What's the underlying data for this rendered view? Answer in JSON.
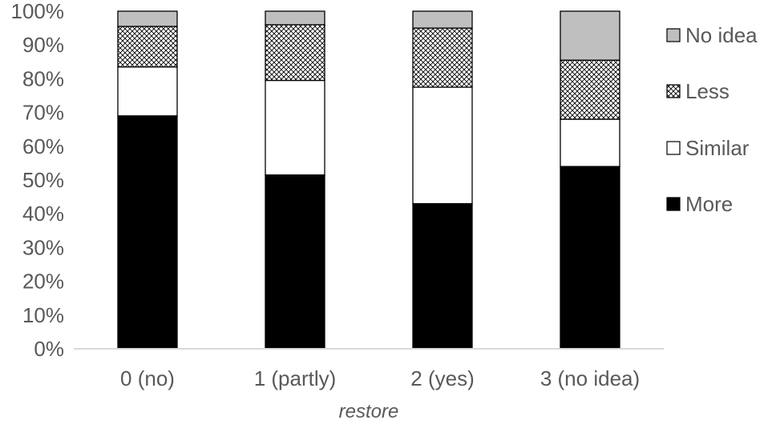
{
  "chart_data": {
    "type": "bar",
    "stacked": true,
    "stack_normalized": true,
    "categories": [
      "0 (no)",
      "1 (partly)",
      "2 (yes)",
      "3 (no idea)"
    ],
    "series": [
      {
        "name": "More",
        "values": [
          69,
          51.5,
          43,
          54
        ],
        "fill": "black"
      },
      {
        "name": "Similar",
        "values": [
          14.5,
          28,
          34.5,
          14
        ],
        "fill": "white"
      },
      {
        "name": "Less",
        "values": [
          12,
          16.5,
          17.5,
          17.5
        ],
        "fill": "crosshatch"
      },
      {
        "name": "No idea",
        "values": [
          4.5,
          4,
          5,
          14.5
        ],
        "fill": "gray"
      }
    ],
    "xlabel": "restore",
    "ylabel": "",
    "ylim": [
      0,
      100
    ],
    "y_ticks": [
      "0%",
      "10%",
      "20%",
      "30%",
      "40%",
      "50%",
      "60%",
      "70%",
      "80%",
      "90%",
      "100%"
    ],
    "grid": false,
    "legend_position": "right",
    "legend_order": [
      "No idea",
      "Less",
      "Similar",
      "More"
    ],
    "colors": {
      "More": "#000000",
      "Similar": "#ffffff",
      "Less": "#ffffff",
      "No idea": "#bfbfbf",
      "outline": "#000000",
      "axis": "#d9d9d9",
      "text": "#595959"
    }
  }
}
